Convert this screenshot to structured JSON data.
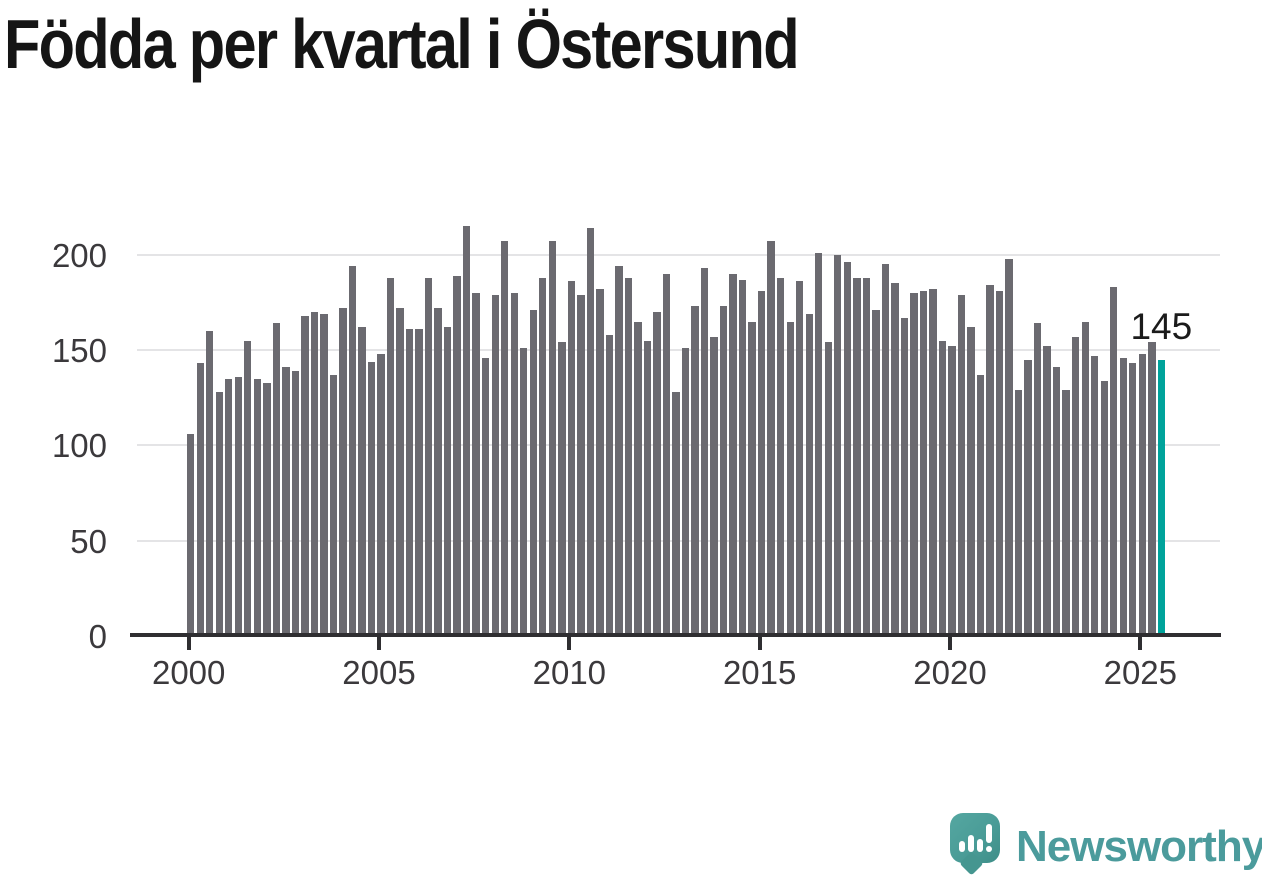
{
  "chart_data": {
    "type": "bar",
    "title": "Födda per kvartal i Östersund",
    "x_unit": "quarter",
    "x_start": "2000 Q1",
    "x_end": "2025 Q3",
    "x_tick_labels": [
      "2000",
      "2005",
      "2010",
      "2015",
      "2020",
      "2025"
    ],
    "y_tick_labels": [
      "0",
      "50",
      "100",
      "150",
      "200"
    ],
    "y_ticks": [
      0,
      50,
      100,
      150,
      200
    ],
    "ylim": [
      0,
      225
    ],
    "grid": "horizontal",
    "legend": "none",
    "bar_color": "#6b6a70",
    "values": [
      106,
      143,
      160,
      128,
      135,
      136,
      155,
      135,
      133,
      164,
      141,
      139,
      168,
      170,
      169,
      137,
      172,
      194,
      162,
      144,
      148,
      188,
      172,
      161,
      161,
      188,
      172,
      162,
      189,
      215,
      180,
      146,
      179,
      207,
      180,
      151,
      171,
      188,
      207,
      154,
      186,
      179,
      214,
      182,
      158,
      194,
      188,
      165,
      155,
      170,
      190,
      128,
      151,
      173,
      193,
      157,
      173,
      190,
      187,
      165,
      181,
      207,
      188,
      165,
      186,
      169,
      201,
      154,
      200,
      196,
      188,
      188,
      171,
      195,
      185,
      167,
      180,
      181,
      182,
      155,
      152,
      179,
      162,
      137,
      184,
      181,
      198,
      129,
      145,
      164,
      152,
      141,
      129,
      157,
      165,
      147,
      134,
      183,
      146,
      143,
      148,
      154,
      145
    ],
    "highlight": {
      "index": 102,
      "value": 145,
      "label": "145",
      "color": "#00a39b",
      "quarter": "2025 Q3"
    },
    "axis_color": "#2f2e31",
    "gridline_color": "#e4e4e6",
    "tick_label_color": "#3b393c"
  },
  "branding": {
    "logo_text": "Newsworthy",
    "logo_text_color": "#4b9b9c",
    "logo_icon": "newsworthy-speech-bubble-bar-chart-icon",
    "logo_icon_color": "#4a9c97"
  }
}
